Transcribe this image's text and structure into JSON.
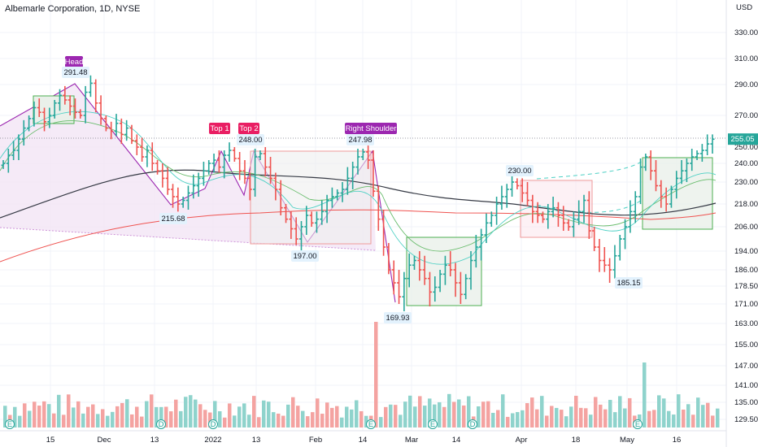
{
  "header": {
    "title": "Albemarle Corporation, 1D, NYSE"
  },
  "chart_data": {
    "type": "candlestick",
    "title": "Albemarle Corporation, 1D, NYSE",
    "y_axis": {
      "currency": "USD",
      "ticks": [
        "330.00",
        "310.00",
        "290.00",
        "270.00",
        "250.00",
        "240.00",
        "230.00",
        "218.00",
        "206.00",
        "194.00",
        "186.00",
        "178.50",
        "171.00",
        "163.00",
        "155.00",
        "147.00",
        "141.00",
        "135.00",
        "129.50"
      ],
      "last_price": "255.05",
      "last_price_color": "#26a69a"
    },
    "x_axis": {
      "ticks": [
        "15",
        "Dec",
        "13",
        "2022",
        "13",
        "Feb",
        "14",
        "Mar",
        "14",
        "Apr",
        "18",
        "May",
        "16"
      ]
    },
    "pattern_labels": [
      {
        "text": "Head",
        "color": "#9c27b0"
      },
      {
        "text": "Top 1",
        "color": "#e91e63"
      },
      {
        "text": "Top 2",
        "color": "#e91e63"
      },
      {
        "text": "Right Shoulder",
        "color": "#9c27b0"
      }
    ],
    "price_labels": [
      "291.48",
      "248.00",
      "247.98",
      "215.68",
      "197.00",
      "169.93",
      "230.00",
      "185.15"
    ],
    "event_markers": [
      "E",
      "D",
      "D",
      "E",
      "E",
      "D",
      "E"
    ],
    "colors": {
      "up": "#26a69a",
      "down": "#ef5350",
      "ma_dark": "#363a45",
      "ma_red": "#ef5350",
      "pattern_fill": "#e1bee7"
    }
  }
}
